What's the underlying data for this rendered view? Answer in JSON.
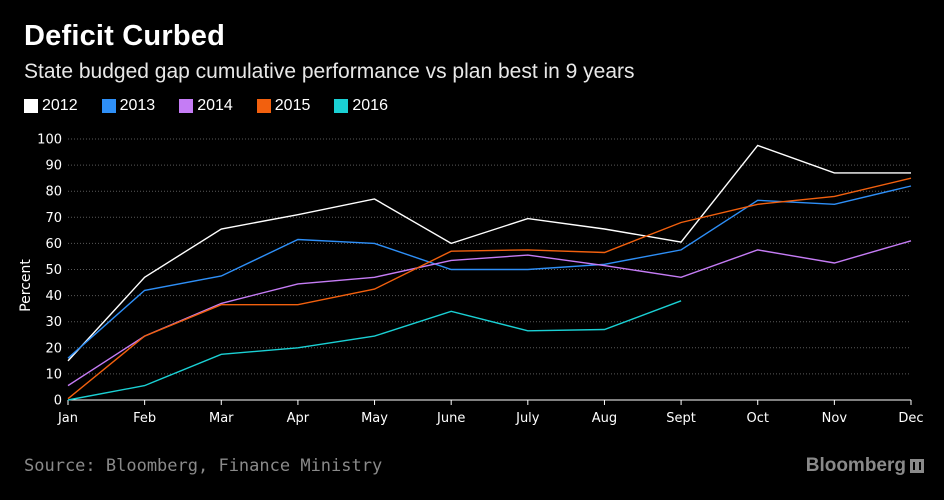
{
  "header": {
    "title": "Deficit Curbed",
    "subtitle": "State budged gap cumulative performance vs plan best in 9 years"
  },
  "footer": {
    "source": "Source: Bloomberg, Finance Ministry",
    "brand": "Bloomberg",
    "brand_icon": "bloomberg-terminal-icon"
  },
  "chart_data": {
    "type": "line",
    "title": "Deficit Curbed",
    "subtitle": "State budged gap cumulative performance vs plan best in 9 years",
    "xlabel": "",
    "ylabel": "Percent",
    "ylim": [
      0,
      100
    ],
    "yticks": [
      0,
      10,
      20,
      30,
      40,
      50,
      60,
      70,
      80,
      90,
      100
    ],
    "grid": true,
    "legend_position": "top-left",
    "categories": [
      "Jan",
      "Feb",
      "Mar",
      "Apr",
      "May",
      "June",
      "July",
      "Aug",
      "Sept",
      "Oct",
      "Nov",
      "Dec"
    ],
    "series": [
      {
        "name": "2012",
        "color": "#ffffff",
        "values": [
          15,
          47,
          65.5,
          71,
          77,
          60,
          69.5,
          65.5,
          60.5,
          97.5,
          87,
          87
        ]
      },
      {
        "name": "2013",
        "color": "#2e8ff7",
        "values": [
          16,
          42,
          47.5,
          61.5,
          60,
          50,
          50,
          52,
          57.5,
          76.5,
          75,
          82
        ]
      },
      {
        "name": "2014",
        "color": "#c57cf5",
        "values": [
          5.5,
          24.5,
          37,
          44.5,
          47,
          53.5,
          55.5,
          51.5,
          47,
          57.5,
          52.5,
          61
        ]
      },
      {
        "name": "2015",
        "color": "#f2600e",
        "values": [
          0.5,
          24.5,
          36.5,
          36.5,
          42.5,
          57,
          57.5,
          56.5,
          68,
          75,
          78,
          85
        ]
      },
      {
        "name": "2016",
        "color": "#1ad0d4",
        "values": [
          0,
          5.5,
          17.5,
          20,
          24.5,
          34,
          26.5,
          27,
          38,
          null,
          null,
          null
        ]
      }
    ]
  }
}
